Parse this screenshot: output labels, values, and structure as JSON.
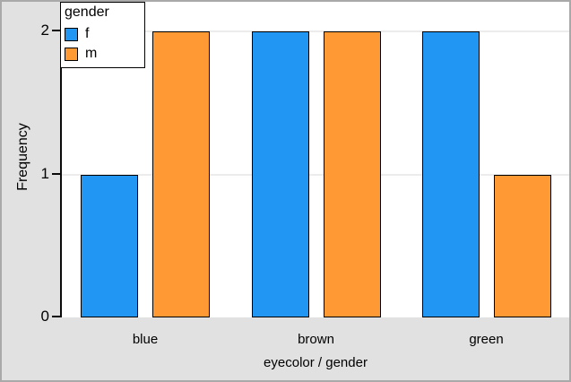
{
  "colors": {
    "female": "#2196F3",
    "male": "#FF9933",
    "margin_bg": "#e1e1e1",
    "plot_bg": "#ffffff",
    "grid": "#ececec",
    "axis": "#0a0a0a",
    "window_border": "#a9a9a9"
  },
  "legend": {
    "title": "gender",
    "items": [
      {
        "label": "f",
        "color": "#2196F3"
      },
      {
        "label": "m",
        "color": "#FF9933"
      }
    ]
  },
  "axes": {
    "y_label": "Frequency",
    "x_label": "eyecolor / gender",
    "y_ticks": [
      "0",
      "1",
      "2"
    ],
    "categories": [
      "blue",
      "brown",
      "green"
    ]
  },
  "chart_data": {
    "type": "bar",
    "categories": [
      "blue",
      "brown",
      "green"
    ],
    "series": [
      {
        "name": "f",
        "values": [
          1,
          2,
          2
        ],
        "color": "#2196F3"
      },
      {
        "name": "m",
        "values": [
          2,
          2,
          1
        ],
        "color": "#FF9933"
      }
    ],
    "title": "",
    "xlabel": "eyecolor / gender",
    "ylabel": "Frequency",
    "ylim": [
      0,
      2
    ],
    "y_tick_values": [
      0,
      1,
      2
    ],
    "grid": true,
    "legend_title": "gender",
    "legend_position": "top-left"
  }
}
